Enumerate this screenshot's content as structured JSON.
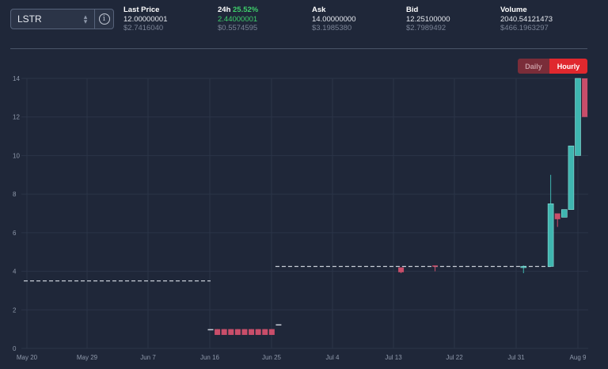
{
  "market": {
    "symbol": "LSTR"
  },
  "stats": {
    "last_price": {
      "label": "Last Price",
      "value": "12.00000001",
      "usd": "$2.7416040"
    },
    "change_24h": {
      "label": "24h",
      "pct": "25.52%",
      "value": "2.44000001",
      "usd": "$0.5574595"
    },
    "ask": {
      "label": "Ask",
      "value": "14.00000000",
      "usd": "$3.1985380"
    },
    "bid": {
      "label": "Bid",
      "value": "12.25100000",
      "usd": "$2.7989492"
    },
    "volume": {
      "label": "Volume",
      "value": "2040.54121473",
      "usd": "$466.1963297"
    }
  },
  "timeframe": {
    "daily_label": "Daily",
    "hourly_label": "Hourly",
    "active": "Hourly"
  },
  "colors": {
    "background": "#1f2739",
    "up": "#3fb6b0",
    "down": "#c94e6a",
    "grid": "#2b3448",
    "flat": "#c9ced8"
  },
  "icons": {
    "info": "info-icon",
    "select_chevron": "chevron-updown-icon"
  },
  "chart_data": {
    "type": "candlestick",
    "x_ticks": [
      "May 20",
      "May 29",
      "Jun 7",
      "Jun 16",
      "Jun 25",
      "Jul 4",
      "Jul 13",
      "Jul 22",
      "Jul 31",
      "Aug 9"
    ],
    "y_ticks": [
      0,
      2,
      4,
      6,
      8,
      10,
      12,
      14
    ],
    "ylim": [
      0,
      14
    ],
    "grid": true,
    "segments": [
      {
        "from": "May 20",
        "to": "Jun 16",
        "value": 3.5,
        "style": "flat-dashed"
      },
      {
        "from": "Jun 26",
        "to": "Aug 5",
        "value": 4.25,
        "style": "flat-dashed"
      }
    ],
    "candles": [
      {
        "date": "Jun 16",
        "open": 1.0,
        "high": 1.0,
        "low": 1.0,
        "close": 1.0,
        "dir": "flat"
      },
      {
        "date": "Jun 17",
        "open": 1.0,
        "high": 1.0,
        "low": 0.7,
        "close": 0.7,
        "dir": "down"
      },
      {
        "date": "Jun 18",
        "open": 1.0,
        "high": 1.0,
        "low": 0.7,
        "close": 0.7,
        "dir": "down"
      },
      {
        "date": "Jun 19",
        "open": 1.0,
        "high": 1.0,
        "low": 0.7,
        "close": 0.7,
        "dir": "down"
      },
      {
        "date": "Jun 20",
        "open": 1.0,
        "high": 1.0,
        "low": 0.7,
        "close": 0.7,
        "dir": "down"
      },
      {
        "date": "Jun 21",
        "open": 1.0,
        "high": 1.0,
        "low": 0.7,
        "close": 0.7,
        "dir": "down"
      },
      {
        "date": "Jun 22",
        "open": 1.0,
        "high": 1.0,
        "low": 0.7,
        "close": 0.7,
        "dir": "down"
      },
      {
        "date": "Jun 23",
        "open": 1.0,
        "high": 1.0,
        "low": 0.7,
        "close": 0.7,
        "dir": "down"
      },
      {
        "date": "Jun 24",
        "open": 1.0,
        "high": 1.0,
        "low": 0.7,
        "close": 0.7,
        "dir": "down"
      },
      {
        "date": "Jun 25",
        "open": 1.0,
        "high": 1.0,
        "low": 0.7,
        "close": 0.7,
        "dir": "down"
      },
      {
        "date": "Jun 26",
        "open": 1.25,
        "high": 1.25,
        "low": 1.25,
        "close": 1.25,
        "dir": "flat"
      },
      {
        "date": "Jul 14",
        "open": 4.2,
        "high": 4.2,
        "low": 3.9,
        "close": 3.95,
        "dir": "down"
      },
      {
        "date": "Jul 19",
        "open": 4.3,
        "high": 4.3,
        "low": 4.0,
        "close": 4.25,
        "dir": "down"
      },
      {
        "date": "Aug 1",
        "open": 4.2,
        "high": 4.3,
        "low": 3.9,
        "close": 4.25,
        "dir": "up"
      },
      {
        "date": "Aug 5",
        "open": 4.25,
        "high": 9.0,
        "low": 4.25,
        "close": 7.5,
        "dir": "up"
      },
      {
        "date": "Aug 6",
        "open": 7.0,
        "high": 7.0,
        "low": 6.3,
        "close": 6.7,
        "dir": "down"
      },
      {
        "date": "Aug 7",
        "open": 6.8,
        "high": 7.2,
        "low": 6.8,
        "close": 7.2,
        "dir": "up"
      },
      {
        "date": "Aug 8",
        "open": 7.2,
        "high": 10.5,
        "low": 7.2,
        "close": 10.5,
        "dir": "up"
      },
      {
        "date": "Aug 9",
        "open": 10.0,
        "high": 14.0,
        "low": 10.0,
        "close": 14.0,
        "dir": "up"
      },
      {
        "date": "Aug 10",
        "open": 14.0,
        "high": 14.0,
        "low": 12.0,
        "close": 12.0,
        "dir": "down"
      }
    ]
  }
}
